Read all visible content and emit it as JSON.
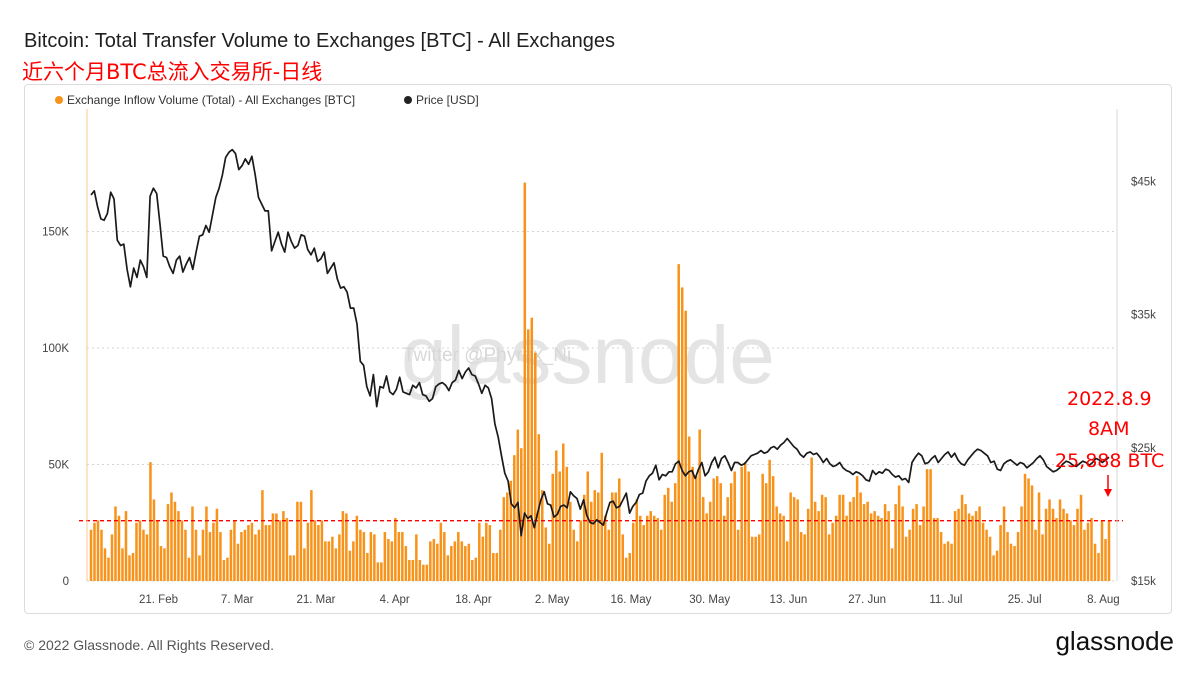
{
  "header": {
    "title": "Bitcoin: Total Transfer Volume to Exchanges [BTC] - All Exchanges",
    "subtitle": "近六个月BTC总流入交易所-日线"
  },
  "footer": {
    "copyright": "© 2022 Glassnode. All Rights Reserved.",
    "logo": "glassnode"
  },
  "watermark": {
    "logo": "glassnode",
    "twitter": "Twitter @Phyrex_Ni"
  },
  "annotation": {
    "lines": [
      "2022.8.9",
      "8AM",
      "25,888 BTC"
    ],
    "value": 25888,
    "color": "#ff0000"
  },
  "colors": {
    "bar": "#f7931a",
    "line": "#1a1a1a",
    "ref": "#ff0000",
    "grid": "#d4d4d4"
  },
  "chart_data": {
    "type": "bar",
    "legend_position": "top-left",
    "x_tick_labels": [
      "21. Feb",
      "7. Mar",
      "21. Mar",
      "4. Apr",
      "18. Apr",
      "2. May",
      "16. May",
      "30. May",
      "13. Jun",
      "27. Jun",
      "11. Jul",
      "25. Jul",
      "8. Aug"
    ],
    "x_range": [
      "2022-02-09",
      "2022-08-09"
    ],
    "y_left": {
      "ticks": [
        "0",
        "50K",
        "100K",
        "150K"
      ],
      "tick_values": [
        0,
        50000,
        100000,
        150000
      ],
      "range": [
        0,
        200000
      ]
    },
    "y_right": {
      "ticks": [
        "$15k",
        "$25k",
        "$35k",
        "$45k"
      ],
      "tick_values": [
        15000,
        25000,
        35000,
        45000
      ],
      "range": [
        15000,
        50000
      ]
    },
    "reference_line": 25888,
    "series": [
      {
        "name": "Exchange Inflow Volume (Total) - All Exchanges [BTC]",
        "axis": "left",
        "kind": "bar",
        "values": [
          22000,
          25000,
          26000,
          22000,
          14000,
          10000,
          20000,
          32000,
          28000,
          14000,
          30000,
          11000,
          12000,
          25000,
          26000,
          22000,
          20000,
          51000,
          35000,
          26000,
          15000,
          14000,
          33000,
          38000,
          34000,
          30000,
          26000,
          22000,
          10000,
          32000,
          22000,
          11000,
          22000,
          32000,
          21000,
          25000,
          31000,
          21000,
          9000,
          10000,
          22000,
          26000,
          16000,
          21000,
          22000,
          24000,
          25000,
          20000,
          22000,
          39000,
          24000,
          24000,
          29000,
          29000,
          26000,
          30000,
          27000,
          11000,
          11000,
          34000,
          34000,
          14000,
          25000,
          39000,
          26000,
          24000,
          26000,
          17000,
          17000,
          19000,
          14000,
          20000,
          30000,
          29000,
          13000,
          17000,
          28000,
          22000,
          21000,
          12000,
          21000,
          20000,
          8000,
          8000,
          21000,
          18000,
          17000,
          27000,
          21000,
          21000,
          15000,
          9000,
          9000,
          20000,
          9000,
          7000,
          7000,
          17000,
          18000,
          16000,
          25000,
          21000,
          11000,
          15000,
          17000,
          21000,
          17000,
          15000,
          16000,
          9000,
          10000,
          25000,
          19000,
          25000,
          24000,
          12000,
          12000,
          22000,
          36000,
          38000,
          43000,
          54000,
          65000,
          57000,
          171000,
          108000,
          113000,
          98000,
          63000,
          39000,
          23000,
          16000,
          46000,
          56000,
          47000,
          59000,
          49000,
          34000,
          22000,
          17000,
          26000,
          37000,
          47000,
          34000,
          39000,
          38000,
          55000,
          28000,
          22000,
          38000,
          38000,
          44000,
          20000,
          10000,
          12000,
          25000,
          35000,
          28000,
          24000,
          28000,
          30000,
          28000,
          27000,
          22000,
          37000,
          40000,
          34000,
          42000,
          136000,
          126000,
          116000,
          62000,
          49000,
          45000,
          65000,
          36000,
          29000,
          34000,
          44000,
          45000,
          42000,
          28000,
          36000,
          42000,
          47000,
          22000,
          49000,
          51000,
          47000,
          19000,
          19000,
          20000,
          46000,
          42000,
          52000,
          45000,
          32000,
          29000,
          28000,
          17000,
          38000,
          36000,
          35000,
          21000,
          20000,
          31000,
          53000,
          34000,
          30000,
          37000,
          36000,
          20000,
          25000,
          28000,
          37000,
          37000,
          28000,
          34000,
          36000,
          45000,
          38000,
          33000,
          34000,
          29000,
          30000,
          28000,
          27000,
          33000,
          30000,
          14000,
          33000,
          41000,
          32000,
          19000,
          22000,
          31000,
          33000,
          24000,
          32000,
          48000,
          48000,
          27000,
          27000,
          21000,
          16000,
          17000,
          16000,
          30000,
          31000,
          37000,
          33000,
          29000,
          28000,
          30000,
          32000,
          25000,
          22000,
          19000,
          11000,
          13000,
          24000,
          32000,
          21000,
          16000,
          15000,
          21000,
          32000,
          46000,
          44000,
          41000,
          22000,
          38000,
          20000,
          31000,
          35000,
          31000,
          27000,
          35000,
          31000,
          29000,
          26000,
          24000,
          31000,
          37000,
          22000,
          25000,
          27000,
          16000,
          12000,
          26000,
          18000,
          25888
        ]
      },
      {
        "name": "Price [USD]",
        "axis": "right",
        "kind": "line",
        "values": [
          44000,
          44300,
          43100,
          42200,
          42100,
          42600,
          44200,
          43700,
          40600,
          40200,
          40300,
          38400,
          37100,
          38500,
          37800,
          39100,
          38600,
          37800,
          43900,
          44500,
          44100,
          41800,
          39400,
          39300,
          38600,
          38100,
          39100,
          39400,
          38200,
          38800,
          39300,
          38400,
          39700,
          40900,
          41000,
          41700,
          41200,
          42500,
          43800,
          44500,
          45500,
          46800,
          47200,
          47400,
          47100,
          45900,
          46200,
          46700,
          46300,
          46900,
          45500,
          43800,
          43300,
          42800,
          42800,
          39800,
          40500,
          41200,
          40300,
          39700,
          41200,
          40500,
          40000,
          40200,
          41000,
          40900,
          39900,
          39500,
          40000,
          39000,
          39200,
          39700,
          38100,
          38500,
          38900,
          37700,
          37000,
          37100,
          36700,
          35500,
          35500,
          34300,
          31500,
          31200,
          29600,
          28900,
          30500,
          28100,
          29600,
          29500,
          30400,
          29200,
          29000,
          29400,
          30300,
          29200,
          29100,
          29000,
          29700,
          29500,
          29900,
          29000,
          28900,
          28500,
          28700,
          29600,
          29800,
          29900,
          29700,
          29300,
          29900,
          30100,
          30800,
          30200,
          30700,
          31000,
          30500,
          30400,
          29800,
          29100,
          29700,
          29500,
          28700,
          26800,
          25800,
          24400,
          23100,
          22500,
          20800,
          20500,
          20900,
          18400,
          20100,
          19700,
          19900,
          19000,
          20100,
          21100,
          21700,
          20800,
          20700,
          19800,
          20000,
          20600,
          20700,
          20500,
          21700,
          21400,
          21200,
          20400,
          21100,
          19900,
          19400,
          19300,
          19600,
          19400,
          19200,
          20100,
          20900,
          21000,
          20500,
          20600,
          21100,
          21600,
          20100,
          20600,
          20900,
          21500,
          21600,
          22500,
          22900,
          23100,
          23700,
          22600,
          23000,
          22900,
          23200,
          23200,
          23800,
          24000,
          23300,
          22900,
          23200,
          23300,
          22700,
          23400,
          23900,
          22900,
          23200,
          23900,
          24300,
          23500,
          24200,
          24400,
          23900,
          23300,
          23900,
          23900,
          23700,
          23800,
          24100,
          24400,
          24500,
          24600,
          24800,
          24600,
          24700,
          25000,
          25100,
          24900,
          25200,
          25400,
          25700,
          25400,
          25100,
          24900,
          24500,
          24300,
          24600,
          24700,
          24500,
          24600,
          24300,
          23900,
          24200,
          23800,
          23600,
          23700,
          23900,
          23500,
          23300,
          23200,
          23000,
          23200,
          23100,
          22900,
          22600,
          22500,
          23300,
          23000,
          23200,
          23100,
          23400,
          23300,
          23000,
          22800,
          22900,
          22600,
          22700,
          22400,
          23900,
          24300,
          24600,
          24400,
          23800,
          23900,
          24200,
          24400,
          23900,
          24200,
          24500,
          24700,
          24300,
          24600,
          24100,
          23800,
          23700,
          24100,
          24400,
          24700,
          24900,
          24800,
          24600,
          24400,
          23900,
          24000,
          23400,
          23300,
          23800,
          24000,
          24100,
          23900,
          23700,
          23900,
          23800,
          23500,
          23700,
          23900,
          24200,
          24400,
          24100,
          23600,
          23400,
          23200,
          23300,
          23500,
          23800,
          24000,
          23900,
          23700,
          23600,
          23800,
          24000,
          23900,
          23700,
          23900,
          24200,
          24100,
          23900,
          24100,
          24300
        ]
      }
    ]
  }
}
